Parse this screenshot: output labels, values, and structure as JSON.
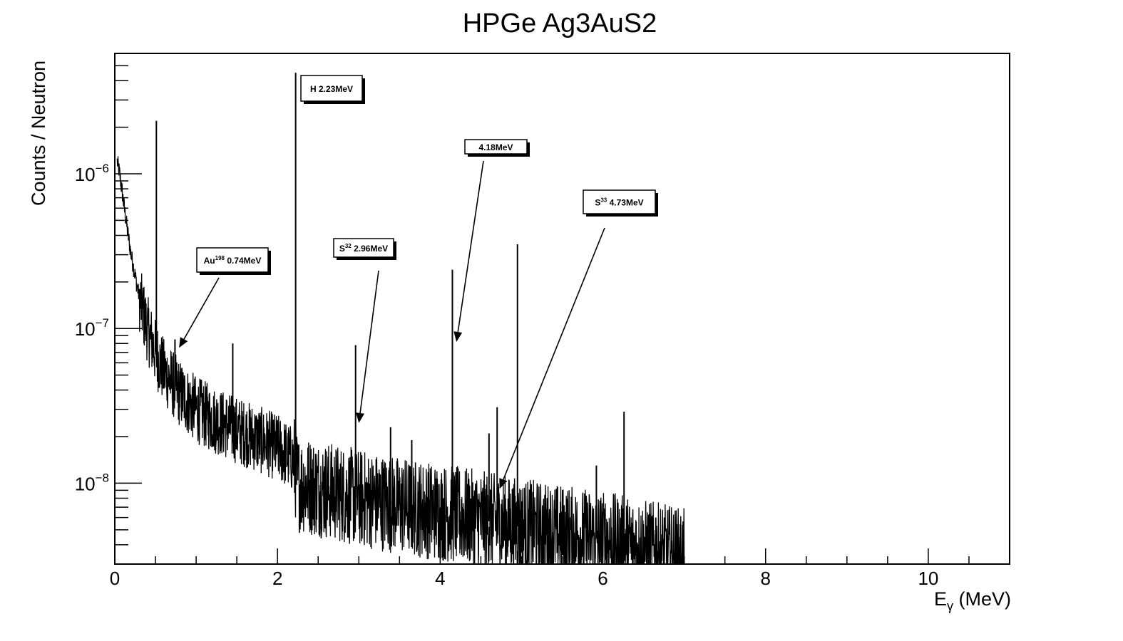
{
  "chart_data": {
    "type": "line",
    "title": "HPGe Ag3AuS2",
    "xlabel": {
      "main": "E",
      "sub": "γ",
      "tail": " (MeV)"
    },
    "ylabel": "Counts / Neutron",
    "xlim": [
      0,
      11
    ],
    "ylim": [
      3e-09,
      6e-06
    ],
    "yscale": "log",
    "grid": false,
    "legend": "none",
    "x_ticks": [
      "0",
      "2",
      "4",
      "6",
      "8",
      "10"
    ],
    "x_tick_values": [
      0,
      2,
      4,
      6,
      8,
      10
    ],
    "y_ticks": [
      {
        "base": "10",
        "exp": "−6",
        "value": 1e-06
      },
      {
        "base": "10",
        "exp": "−7",
        "value": 1e-07
      },
      {
        "base": "10",
        "exp": "−8",
        "value": 1e-08
      }
    ],
    "background_curve": [
      [
        0.03,
        1.2e-06
      ],
      [
        0.06,
        1e-06
      ],
      [
        0.1,
        7e-07
      ],
      [
        0.15,
        4.5e-07
      ],
      [
        0.2,
        3e-07
      ],
      [
        0.25,
        2.2e-07
      ],
      [
        0.3,
        1.6e-07
      ],
      [
        0.35,
        1.25e-07
      ],
      [
        0.4,
        1e-07
      ],
      [
        0.5,
        7e-08
      ],
      [
        0.6,
        5.3e-08
      ],
      [
        0.8,
        3.8e-08
      ],
      [
        1.0,
        3e-08
      ],
      [
        1.2,
        2.6e-08
      ],
      [
        1.5,
        2.2e-08
      ],
      [
        2.0,
        1.7e-08
      ],
      [
        2.2,
        1.4e-08
      ],
      [
        2.25,
        1e-08
      ],
      [
        3.0,
        8e-09
      ],
      [
        4.0,
        6.5e-09
      ],
      [
        5.0,
        5.2e-09
      ],
      [
        6.0,
        4.3e-09
      ],
      [
        6.5,
        3.8e-09
      ],
      [
        7.0,
        3.3e-09
      ]
    ],
    "peaks": [
      {
        "x": 0.511,
        "y": 2.2e-06
      },
      {
        "x": 0.74,
        "y": 8.5e-08
      },
      {
        "x": 1.45,
        "y": 8e-08
      },
      {
        "x": 2.223,
        "y": 4.5e-06
      },
      {
        "x": 2.96,
        "y": 7.8e-08
      },
      {
        "x": 3.39,
        "y": 2.3e-08
      },
      {
        "x": 3.65,
        "y": 1.9e-08
      },
      {
        "x": 4.15,
        "y": 2.4e-07
      },
      {
        "x": 4.6,
        "y": 2.1e-08
      },
      {
        "x": 4.7,
        "y": 3.1e-08
      },
      {
        "x": 4.95,
        "y": 3.5e-07
      },
      {
        "x": 5.92,
        "y": 1.3e-08
      },
      {
        "x": 6.26,
        "y": 2.9e-08
      },
      {
        "x": 6.65,
        "y": 6e-09
      }
    ],
    "annotations": [
      {
        "pre": "Au",
        "sup": "198",
        "text": " 0.74MeV",
        "arrow_to": [
          0.79,
          7.5e-08
        ]
      },
      {
        "pre": "H",
        "sup": "",
        "text": " 2.23MeV",
        "arrow_to": null
      },
      {
        "pre": "S",
        "sup": "32",
        "text": " 2.96MeV",
        "arrow_to": [
          3.0,
          2.45e-08
        ]
      },
      {
        "pre": "",
        "sup": "",
        "text": "4.18MeV",
        "arrow_to": [
          4.2,
          8.2e-08
        ]
      },
      {
        "pre": "S",
        "sup": "33",
        "text": " 4.73MeV",
        "arrow_to": [
          4.73,
          9.2e-09
        ]
      }
    ]
  }
}
